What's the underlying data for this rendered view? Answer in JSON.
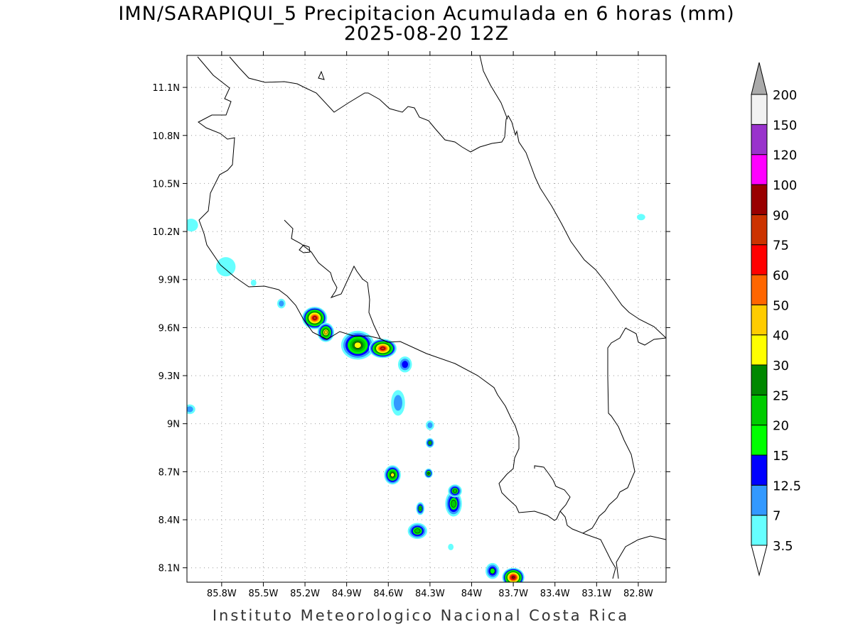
{
  "title": "IMN/SARAPIQUI_5 Precipitacion Acumulada en 6 horas (mm)",
  "subtitle": "2025-08-20 12Z",
  "footer": "Instituto Meteorologico Nacional Costa Rica",
  "map": {
    "lon_range": [
      -86.05,
      -82.6
    ],
    "lat_range": [
      8.01,
      11.3
    ],
    "lat_ticks": [
      {
        "value": 11.1,
        "label": "11.1N"
      },
      {
        "value": 10.8,
        "label": "10.8N"
      },
      {
        "value": 10.5,
        "label": "10.5N"
      },
      {
        "value": 10.2,
        "label": "10.2N"
      },
      {
        "value": 9.9,
        "label": "9.9N"
      },
      {
        "value": 9.6,
        "label": "9.6N"
      },
      {
        "value": 9.3,
        "label": "9.3N"
      },
      {
        "value": 9.0,
        "label": "9N"
      },
      {
        "value": 8.7,
        "label": "8.7N"
      },
      {
        "value": 8.4,
        "label": "8.4N"
      },
      {
        "value": 8.1,
        "label": "8.1N"
      }
    ],
    "lon_ticks": [
      {
        "value": -85.8,
        "label": "85.8W"
      },
      {
        "value": -85.5,
        "label": "85.5W"
      },
      {
        "value": -85.2,
        "label": "85.2W"
      },
      {
        "value": -84.9,
        "label": "84.9W"
      },
      {
        "value": -84.6,
        "label": "84.6W"
      },
      {
        "value": -84.3,
        "label": "84.3W"
      },
      {
        "value": -84.0,
        "label": "84W"
      },
      {
        "value": -83.7,
        "label": "83.7W"
      },
      {
        "value": -83.4,
        "label": "83.4W"
      },
      {
        "value": -83.1,
        "label": "83.1W"
      },
      {
        "value": -82.8,
        "label": "82.8W"
      }
    ],
    "grid": "dotted"
  },
  "colorbar": {
    "units": "mm",
    "levels": [
      {
        "label": "3.5",
        "color": "#66ffff"
      },
      {
        "label": "7",
        "color": "#3399ff"
      },
      {
        "label": "12.5",
        "color": "#0000ff"
      },
      {
        "label": "15",
        "color": "#00ff00"
      },
      {
        "label": "20",
        "color": "#00cc00"
      },
      {
        "label": "25",
        "color": "#008800"
      },
      {
        "label": "30",
        "color": "#ffff00"
      },
      {
        "label": "40",
        "color": "#ffcc00"
      },
      {
        "label": "50",
        "color": "#ff6600"
      },
      {
        "label": "60",
        "color": "#ff0000"
      },
      {
        "label": "75",
        "color": "#cc3300"
      },
      {
        "label": "90",
        "color": "#990000"
      },
      {
        "label": "100",
        "color": "#ff00ff"
      },
      {
        "label": "120",
        "color": "#9933cc"
      },
      {
        "label": "150",
        "color": "#f2f2f2"
      },
      {
        "label": "200",
        "color": "#aaaaaa"
      }
    ]
  },
  "precip_cells": [
    {
      "lon": -85.13,
      "lat": 9.66,
      "rx": 0.09,
      "ry": 0.07,
      "max": 75
    },
    {
      "lon": -85.05,
      "lat": 9.57,
      "rx": 0.06,
      "ry": 0.06,
      "max": 40
    },
    {
      "lon": -84.82,
      "lat": 9.49,
      "rx": 0.12,
      "ry": 0.09,
      "max": 30
    },
    {
      "lon": -84.64,
      "lat": 9.47,
      "rx": 0.1,
      "ry": 0.06,
      "max": 75
    },
    {
      "lon": -84.48,
      "lat": 9.37,
      "rx": 0.05,
      "ry": 0.05,
      "max": 12.5
    },
    {
      "lon": -84.53,
      "lat": 9.13,
      "rx": 0.05,
      "ry": 0.08,
      "max": 7
    },
    {
      "lon": -84.3,
      "lat": 8.88,
      "rx": 0.03,
      "ry": 0.03,
      "max": 20
    },
    {
      "lon": -84.3,
      "lat": 8.99,
      "rx": 0.03,
      "ry": 0.03,
      "max": 7
    },
    {
      "lon": -84.57,
      "lat": 8.68,
      "rx": 0.06,
      "ry": 0.06,
      "max": 30
    },
    {
      "lon": -84.31,
      "lat": 8.69,
      "rx": 0.03,
      "ry": 0.03,
      "max": 25
    },
    {
      "lon": -84.13,
      "lat": 8.5,
      "rx": 0.06,
      "ry": 0.08,
      "max": 20
    },
    {
      "lon": -84.12,
      "lat": 8.58,
      "rx": 0.05,
      "ry": 0.04,
      "max": 20
    },
    {
      "lon": -84.37,
      "lat": 8.47,
      "rx": 0.03,
      "ry": 0.04,
      "max": 20
    },
    {
      "lon": -84.39,
      "lat": 8.33,
      "rx": 0.07,
      "ry": 0.05,
      "max": 20
    },
    {
      "lon": -83.85,
      "lat": 8.08,
      "rx": 0.05,
      "ry": 0.05,
      "max": 15
    },
    {
      "lon": -83.7,
      "lat": 8.04,
      "rx": 0.08,
      "ry": 0.06,
      "max": 90
    },
    {
      "lon": -85.37,
      "lat": 9.75,
      "rx": 0.03,
      "ry": 0.03,
      "max": 7
    },
    {
      "lon": -86.03,
      "lat": 9.09,
      "rx": 0.04,
      "ry": 0.03,
      "max": 7
    },
    {
      "lon": -85.77,
      "lat": 9.98,
      "rx": 0.07,
      "ry": 0.06,
      "max": 3.5
    },
    {
      "lon": -86.02,
      "lat": 10.24,
      "rx": 0.05,
      "ry": 0.04,
      "max": 3.5
    },
    {
      "lon": -85.57,
      "lat": 9.88,
      "rx": 0.02,
      "ry": 0.02,
      "max": 3.5
    },
    {
      "lon": -82.78,
      "lat": 10.29,
      "rx": 0.03,
      "ry": 0.02,
      "max": 3.5
    },
    {
      "lon": -84.15,
      "lat": 8.23,
      "rx": 0.02,
      "ry": 0.02,
      "max": 3.5
    }
  ]
}
